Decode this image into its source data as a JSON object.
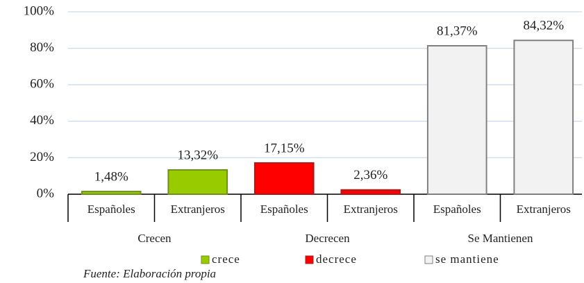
{
  "chart_data": {
    "type": "bar",
    "categories": [
      "Españoles",
      "Extranjeros",
      "Españoles",
      "Extranjeros",
      "Españoles",
      "Extranjeros"
    ],
    "groups": [
      "Crecen",
      "Decrecen",
      "Se Mantienen"
    ],
    "series": [
      {
        "name": "crece",
        "color": "#99cc00",
        "stroke": "#6e8f1e",
        "values": [
          1.48,
          13.32,
          null,
          null,
          null,
          null
        ],
        "value_labels": [
          "1,48%",
          "13,32%",
          null,
          null,
          null,
          null
        ]
      },
      {
        "name": "decrece",
        "color": "#ff0000",
        "stroke": "#a61c1c",
        "values": [
          null,
          null,
          17.15,
          2.36,
          null,
          null
        ],
        "value_labels": [
          null,
          null,
          "17,15%",
          "2,36%",
          null,
          null
        ]
      },
      {
        "name": "se mantiene",
        "color": "#f2f2f2",
        "stroke": "#808080",
        "values": [
          null,
          null,
          null,
          null,
          81.37,
          84.32
        ],
        "value_labels": [
          null,
          null,
          null,
          null,
          "81,37%",
          "84,32%"
        ]
      }
    ],
    "ylim": [
      0,
      100
    ],
    "yticks": [
      {
        "value": 0,
        "label": "0%"
      },
      {
        "value": 20,
        "label": "20%"
      },
      {
        "value": 40,
        "label": "40%"
      },
      {
        "value": 60,
        "label": "60%"
      },
      {
        "value": 80,
        "label": "80%"
      },
      {
        "value": 100,
        "label": "100%"
      }
    ],
    "grid": true,
    "source": "Fuente: Elaboración propia"
  }
}
